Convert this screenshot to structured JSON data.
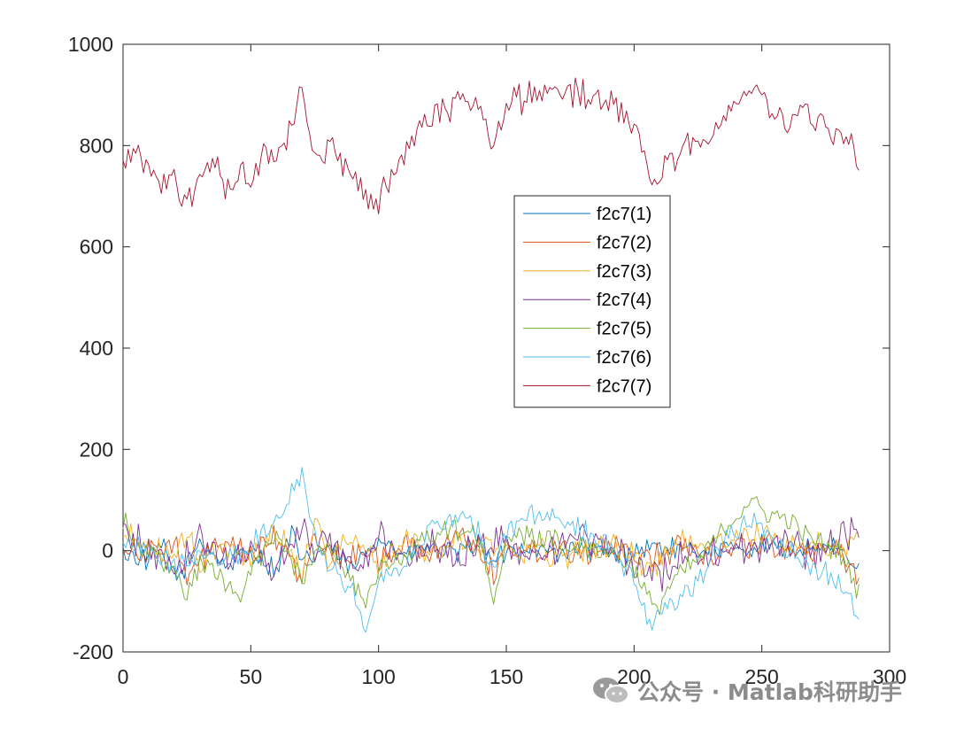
{
  "chart_data": {
    "type": "line",
    "title": "",
    "xlabel": "",
    "ylabel": "",
    "xlim": [
      0,
      300
    ],
    "ylim": [
      -200,
      1000
    ],
    "xticks": [
      0,
      50,
      100,
      150,
      200,
      250,
      300
    ],
    "yticks": [
      -200,
      0,
      200,
      400,
      600,
      800,
      1000
    ],
    "xtick_labels": [
      "0",
      "50",
      "100",
      "150",
      "200",
      "250",
      "300"
    ],
    "ytick_labels": [
      "-200",
      "0",
      "200",
      "400",
      "600",
      "800",
      "1000"
    ],
    "grid": false,
    "legend_position": "center",
    "n_points": 289,
    "series": [
      {
        "name": "f2c7(1)",
        "color": "#0072BD",
        "anchors": [
          [
            0,
            0
          ],
          [
            10,
            -20
          ],
          [
            15,
            10
          ],
          [
            22,
            -60
          ],
          [
            30,
            20
          ],
          [
            40,
            -30
          ],
          [
            50,
            0
          ],
          [
            60,
            -40
          ],
          [
            66,
            40
          ],
          [
            70,
            -30
          ],
          [
            80,
            10
          ],
          [
            90,
            -40
          ],
          [
            100,
            30
          ],
          [
            110,
            -10
          ],
          [
            120,
            10
          ],
          [
            130,
            -10
          ],
          [
            140,
            20
          ],
          [
            145,
            -30
          ],
          [
            150,
            0
          ],
          [
            160,
            10
          ],
          [
            170,
            -5
          ],
          [
            180,
            5
          ],
          [
            190,
            -10
          ],
          [
            200,
            0
          ],
          [
            210,
            10
          ],
          [
            220,
            -5
          ],
          [
            230,
            10
          ],
          [
            240,
            0
          ],
          [
            250,
            10
          ],
          [
            260,
            0
          ],
          [
            270,
            10
          ],
          [
            280,
            0
          ],
          [
            288,
            -40
          ]
        ],
        "amp": 25
      },
      {
        "name": "f2c7(2)",
        "color": "#D95319",
        "anchors": [
          [
            0,
            10
          ],
          [
            10,
            -10
          ],
          [
            20,
            20
          ],
          [
            25,
            -60
          ],
          [
            35,
            10
          ],
          [
            50,
            -10
          ],
          [
            60,
            30
          ],
          [
            70,
            -60
          ],
          [
            75,
            20
          ],
          [
            85,
            -20
          ],
          [
            95,
            10
          ],
          [
            100,
            -30
          ],
          [
            110,
            20
          ],
          [
            120,
            -10
          ],
          [
            130,
            30
          ],
          [
            140,
            10
          ],
          [
            145,
            -50
          ],
          [
            150,
            10
          ],
          [
            160,
            -5
          ],
          [
            170,
            10
          ],
          [
            180,
            0
          ],
          [
            190,
            5
          ],
          [
            200,
            -10
          ],
          [
            210,
            -5
          ],
          [
            220,
            10
          ],
          [
            230,
            -5
          ],
          [
            240,
            10
          ],
          [
            250,
            15
          ],
          [
            260,
            5
          ],
          [
            270,
            0
          ],
          [
            280,
            10
          ],
          [
            288,
            -60
          ]
        ],
        "amp": 30
      },
      {
        "name": "f2c7(3)",
        "color": "#EDB120",
        "anchors": [
          [
            0,
            30
          ],
          [
            10,
            10
          ],
          [
            20,
            -20
          ],
          [
            25,
            40
          ],
          [
            30,
            -30
          ],
          [
            40,
            10
          ],
          [
            50,
            -20
          ],
          [
            60,
            40
          ],
          [
            70,
            -40
          ],
          [
            75,
            60
          ],
          [
            80,
            -10
          ],
          [
            90,
            20
          ],
          [
            100,
            -30
          ],
          [
            110,
            20
          ],
          [
            120,
            -10
          ],
          [
            130,
            20
          ],
          [
            140,
            10
          ],
          [
            150,
            0
          ],
          [
            160,
            5
          ],
          [
            170,
            -10
          ],
          [
            180,
            0
          ],
          [
            190,
            10
          ],
          [
            200,
            -10
          ],
          [
            205,
            -40
          ],
          [
            210,
            -20
          ],
          [
            220,
            20
          ],
          [
            230,
            10
          ],
          [
            240,
            20
          ],
          [
            250,
            30
          ],
          [
            260,
            20
          ],
          [
            270,
            10
          ],
          [
            280,
            0
          ],
          [
            288,
            30
          ]
        ],
        "amp": 30
      },
      {
        "name": "f2c7(4)",
        "color": "#7E2F8E",
        "anchors": [
          [
            0,
            40
          ],
          [
            10,
            0
          ],
          [
            20,
            -30
          ],
          [
            30,
            20
          ],
          [
            40,
            -20
          ],
          [
            50,
            10
          ],
          [
            60,
            -40
          ],
          [
            70,
            60
          ],
          [
            75,
            -20
          ],
          [
            80,
            40
          ],
          [
            90,
            -50
          ],
          [
            100,
            40
          ],
          [
            110,
            -30
          ],
          [
            120,
            20
          ],
          [
            130,
            -20
          ],
          [
            140,
            10
          ],
          [
            150,
            20
          ],
          [
            160,
            -10
          ],
          [
            170,
            10
          ],
          [
            180,
            20
          ],
          [
            190,
            10
          ],
          [
            200,
            -20
          ],
          [
            208,
            -60
          ],
          [
            215,
            -20
          ],
          [
            225,
            0
          ],
          [
            240,
            10
          ],
          [
            250,
            0
          ],
          [
            260,
            20
          ],
          [
            270,
            -10
          ],
          [
            280,
            20
          ],
          [
            288,
            40
          ]
        ],
        "amp": 40
      },
      {
        "name": "f2c7(5)",
        "color": "#77AC30",
        "anchors": [
          [
            0,
            60
          ],
          [
            10,
            -10
          ],
          [
            20,
            -40
          ],
          [
            25,
            -100
          ],
          [
            30,
            -20
          ],
          [
            40,
            -60
          ],
          [
            45,
            -100
          ],
          [
            50,
            -40
          ],
          [
            60,
            30
          ],
          [
            70,
            -50
          ],
          [
            80,
            20
          ],
          [
            90,
            -60
          ],
          [
            95,
            -110
          ],
          [
            100,
            -40
          ],
          [
            110,
            -10
          ],
          [
            120,
            30
          ],
          [
            130,
            40
          ],
          [
            140,
            20
          ],
          [
            145,
            -100
          ],
          [
            150,
            20
          ],
          [
            160,
            30
          ],
          [
            170,
            20
          ],
          [
            180,
            10
          ],
          [
            190,
            0
          ],
          [
            200,
            -30
          ],
          [
            208,
            -120
          ],
          [
            215,
            -60
          ],
          [
            225,
            -20
          ],
          [
            235,
            40
          ],
          [
            245,
            100
          ],
          [
            250,
            80
          ],
          [
            260,
            60
          ],
          [
            270,
            20
          ],
          [
            280,
            0
          ],
          [
            288,
            -80
          ]
        ],
        "amp": 25
      },
      {
        "name": "f2c7(6)",
        "color": "#4DBEEE",
        "anchors": [
          [
            0,
            20
          ],
          [
            10,
            0
          ],
          [
            20,
            -30
          ],
          [
            30,
            -10
          ],
          [
            40,
            -20
          ],
          [
            50,
            10
          ],
          [
            60,
            60
          ],
          [
            70,
            160
          ],
          [
            75,
            40
          ],
          [
            80,
            -20
          ],
          [
            90,
            -80
          ],
          [
            95,
            -160
          ],
          [
            100,
            -60
          ],
          [
            110,
            -20
          ],
          [
            120,
            40
          ],
          [
            130,
            70
          ],
          [
            140,
            30
          ],
          [
            145,
            -40
          ],
          [
            150,
            40
          ],
          [
            160,
            70
          ],
          [
            170,
            60
          ],
          [
            180,
            40
          ],
          [
            190,
            10
          ],
          [
            200,
            -60
          ],
          [
            207,
            -150
          ],
          [
            215,
            -100
          ],
          [
            225,
            -60
          ],
          [
            235,
            20
          ],
          [
            245,
            60
          ],
          [
            250,
            40
          ],
          [
            260,
            0
          ],
          [
            270,
            -30
          ],
          [
            280,
            -60
          ],
          [
            288,
            -130
          ]
        ],
        "amp": 25
      },
      {
        "name": "f2c7(7)",
        "color": "#A2142F",
        "anchors": [
          [
            0,
            760
          ],
          [
            5,
            780
          ],
          [
            10,
            750
          ],
          [
            15,
            720
          ],
          [
            20,
            740
          ],
          [
            25,
            680
          ],
          [
            30,
            740
          ],
          [
            35,
            760
          ],
          [
            40,
            720
          ],
          [
            45,
            750
          ],
          [
            50,
            730
          ],
          [
            55,
            780
          ],
          [
            60,
            790
          ],
          [
            65,
            820
          ],
          [
            70,
            900
          ],
          [
            75,
            790
          ],
          [
            80,
            800
          ],
          [
            85,
            770
          ],
          [
            90,
            740
          ],
          [
            95,
            700
          ],
          [
            98,
            660
          ],
          [
            102,
            720
          ],
          [
            110,
            780
          ],
          [
            115,
            820
          ],
          [
            120,
            850
          ],
          [
            125,
            870
          ],
          [
            130,
            880
          ],
          [
            135,
            890
          ],
          [
            140,
            870
          ],
          [
            145,
            800
          ],
          [
            150,
            880
          ],
          [
            155,
            890
          ],
          [
            160,
            900
          ],
          [
            170,
            910
          ],
          [
            180,
            900
          ],
          [
            190,
            880
          ],
          [
            200,
            840
          ],
          [
            205,
            750
          ],
          [
            208,
            720
          ],
          [
            212,
            750
          ],
          [
            220,
            800
          ],
          [
            230,
            830
          ],
          [
            240,
            880
          ],
          [
            245,
            920
          ],
          [
            250,
            900
          ],
          [
            255,
            870
          ],
          [
            260,
            850
          ],
          [
            270,
            860
          ],
          [
            275,
            840
          ],
          [
            280,
            820
          ],
          [
            285,
            800
          ],
          [
            288,
            720
          ]
        ],
        "amp": 35
      }
    ]
  },
  "watermark": {
    "icon": "wechat-icon",
    "text": "公众号 · Matlab科研助手"
  }
}
